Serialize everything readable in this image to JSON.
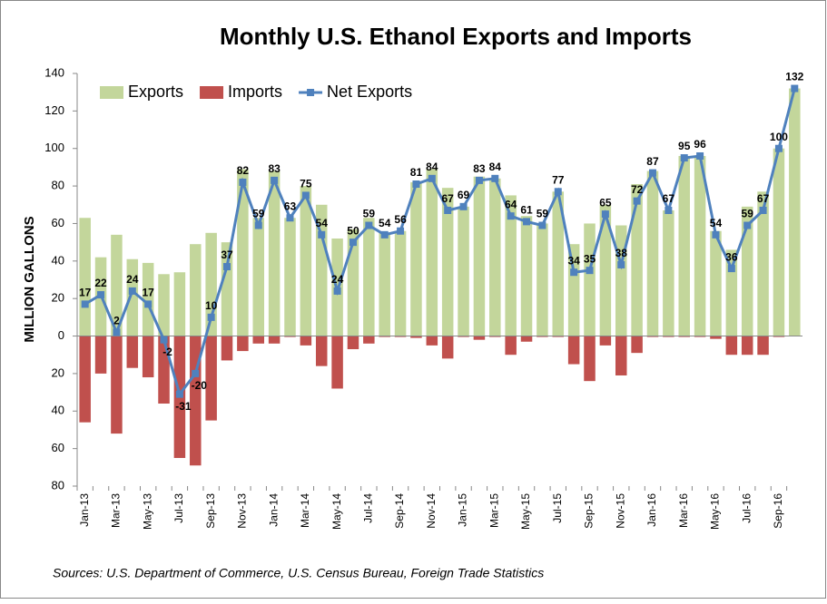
{
  "chart_data": {
    "type": "bar",
    "title": "Monthly U.S. Ethanol Exports and Imports",
    "y_label": "MILLION GALLONS",
    "source": "Sources: U.S. Department of Commerce,  U.S. Census Bureau, Foreign Trade Statistics",
    "categories": [
      "Jan-13",
      null,
      "Mar-13",
      null,
      "May-13",
      null,
      "Jul-13",
      null,
      "Sep-13",
      null,
      "Nov-13",
      null,
      "Jan-14",
      null,
      "Mar-14",
      null,
      "May-14",
      null,
      "Jul-14",
      null,
      "Sep-14",
      null,
      "Nov-14",
      null,
      "Jan-15",
      null,
      "Mar-15",
      null,
      "May-15",
      null,
      "Jul-15",
      null,
      "Sep-15",
      null,
      "Nov-15",
      null,
      "Jan-16",
      null,
      "Mar-16",
      null,
      "May-16",
      null,
      "Jul-16",
      null,
      "Sep-16",
      null
    ],
    "series": [
      {
        "name": "Exports",
        "color": "#c3d69b",
        "kind": "bar",
        "values": [
          63,
          42,
          54,
          41,
          39,
          33,
          34,
          49,
          55,
          50,
          89,
          63,
          88,
          63,
          80,
          70,
          52,
          57,
          63,
          55,
          56,
          82,
          89,
          79,
          69,
          85,
          84,
          75,
          64,
          60,
          77,
          49,
          60,
          70,
          59,
          81,
          88,
          67,
          96,
          96,
          56,
          46,
          69,
          77,
          100,
          132
        ]
      },
      {
        "name": "Imports",
        "color": "#c0504d",
        "kind": "bar",
        "values": [
          -46,
          -20,
          -52,
          -17,
          -22,
          -36,
          -65,
          -69,
          -45,
          -13,
          -8,
          -4,
          -4,
          -0.5,
          -5,
          -16,
          -28,
          -7,
          -4,
          -0.5,
          -0.5,
          -1,
          -5,
          -12,
          -0.5,
          -2,
          -0.5,
          -10,
          -3,
          -0.5,
          -0.5,
          -15,
          -24,
          -5,
          -21,
          -9,
          -0.5,
          -0.5,
          -0.5,
          -0.5,
          -1.5,
          -10,
          -10,
          -10,
          -0.5,
          0
        ]
      },
      {
        "name": "Net Exports",
        "color": "#4f81bd",
        "kind": "line",
        "values": [
          17,
          22,
          2,
          24,
          17,
          -2,
          -31,
          -20,
          10,
          37,
          82,
          59,
          83,
          63,
          75,
          54,
          24,
          50,
          59,
          54,
          56,
          81,
          84,
          67,
          69,
          83,
          84,
          64,
          61,
          59,
          77,
          34,
          35,
          65,
          38,
          72,
          87,
          67,
          95,
          96,
          54,
          36,
          59,
          67,
          100,
          132
        ]
      }
    ],
    "ylim": [
      -80,
      140
    ],
    "yticks": [
      {
        "value": -80,
        "label": "80"
      },
      {
        "value": -60,
        "label": "60"
      },
      {
        "value": -40,
        "label": "40"
      },
      {
        "value": -20,
        "label": "20"
      },
      0,
      20,
      40,
      60,
      80,
      100,
      120,
      140
    ],
    "legend": "top-left"
  }
}
